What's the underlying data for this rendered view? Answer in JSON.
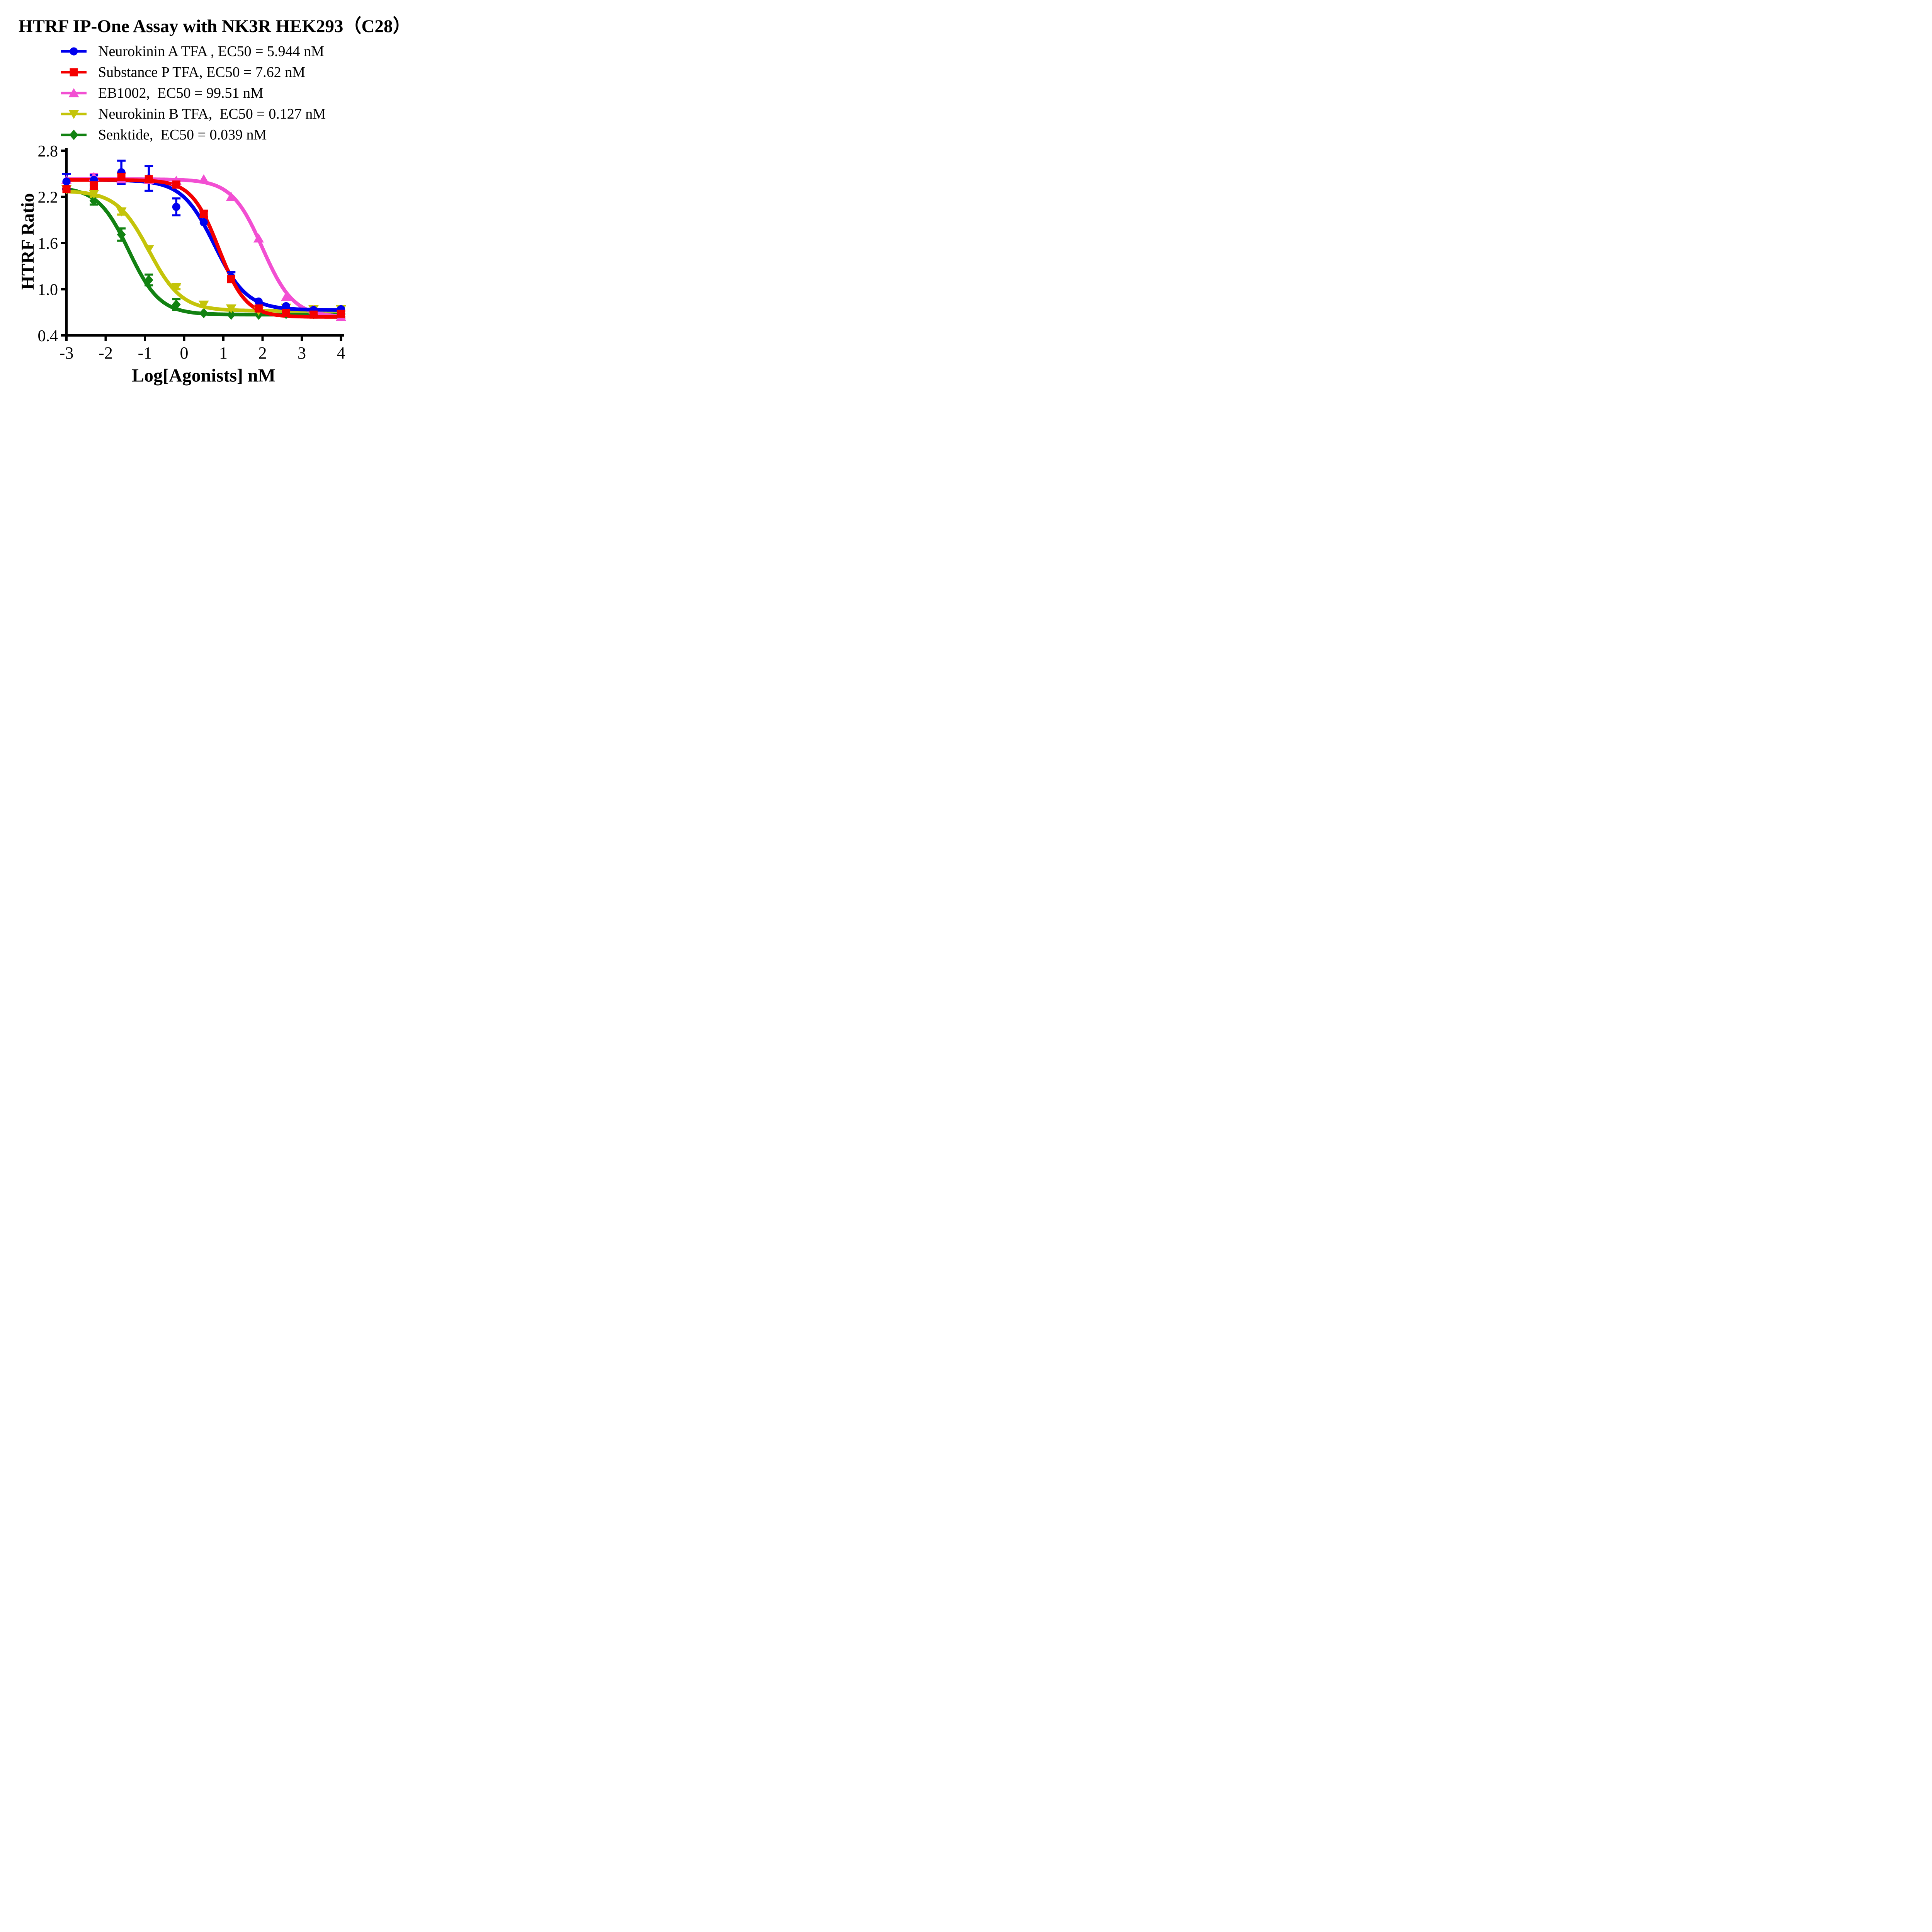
{
  "title": "HTRF IP-One Assay with NK3R HEK293（C28）",
  "chart_data": {
    "type": "line",
    "title": "HTRF IP-One Assay with NK3R HEK293（C28）",
    "xlabel": "Log[Agonists] nM",
    "ylabel": "HTRF Ratio",
    "xlim": [
      -3,
      4
    ],
    "ylim": [
      0.4,
      2.8
    ],
    "grid": false,
    "legend_position": "top-left",
    "xticks": [
      {
        "v": -3,
        "label": "-3"
      },
      {
        "v": -2,
        "label": "-2"
      },
      {
        "v": -1,
        "label": "-1"
      },
      {
        "v": 0,
        "label": "0"
      },
      {
        "v": 1,
        "label": "1"
      },
      {
        "v": 2,
        "label": "2"
      },
      {
        "v": 3,
        "label": "3"
      },
      {
        "v": 4,
        "label": "4"
      }
    ],
    "yticks": [
      {
        "v": 0.4,
        "label": "0.4"
      },
      {
        "v": 1.0,
        "label": "1.0"
      },
      {
        "v": 1.6,
        "label": "1.6"
      },
      {
        "v": 2.2,
        "label": "2.2"
      },
      {
        "v": 2.8,
        "label": "2.8"
      }
    ],
    "x": [
      -3,
      -2.3,
      -1.6,
      -0.9,
      -0.2,
      0.5,
      1.2,
      1.9,
      2.6,
      3.3,
      4
    ],
    "series": [
      {
        "name": "Neurokinin A TFA",
        "legend_label": "Neurokinin A TFA , EC50 = 5.944 nM",
        "ec50_nM": 5.944,
        "color": "#0000EE",
        "marker": "circle",
        "y": [
          2.4,
          2.42,
          2.52,
          2.44,
          2.07,
          1.87,
          1.16,
          0.84,
          0.78,
          0.73,
          0.74
        ],
        "sem": [
          0.1,
          0.06,
          0.15,
          0.16,
          0.11,
          0,
          0.06,
          0,
          0,
          0,
          0
        ],
        "fit": {
          "top": 2.42,
          "bottom": 0.73,
          "logEC50": 0.774,
          "hill": 1.05
        }
      },
      {
        "name": "Substance P TFA",
        "legend_label": "Substance P TFA, EC50 = 7.62 nM",
        "ec50_nM": 7.62,
        "color": "#F40000",
        "marker": "square",
        "y": [
          2.3,
          2.35,
          2.46,
          2.43,
          2.36,
          1.98,
          1.13,
          0.75,
          0.69,
          0.67,
          0.68
        ],
        "sem": [
          0,
          0.05,
          0.05,
          0,
          0,
          0.04,
          0,
          0,
          0,
          0,
          0.04
        ],
        "fit": {
          "top": 2.42,
          "bottom": 0.64,
          "logEC50": 0.882,
          "hill": 1.25
        }
      },
      {
        "name": "EB1002",
        "legend_label": "EB1002,  EC50 = 99.51 nM",
        "ec50_nM": 99.51,
        "color": "#F24FD2",
        "marker": "triangle-up",
        "y": [
          2.42,
          2.46,
          2.43,
          2.42,
          2.41,
          2.43,
          2.2,
          1.66,
          0.9,
          0.73,
          0.64
        ],
        "sem": [
          0,
          0.04,
          0,
          0,
          0,
          0,
          0,
          0,
          0,
          0,
          0
        ],
        "fit": {
          "top": 2.43,
          "bottom": 0.64,
          "logEC50": 1.998,
          "hill": 1.1
        }
      },
      {
        "name": "Neurokinin B TFA",
        "legend_label": "Neurokinin B TFA,  EC50 = 0.127 nM",
        "ec50_nM": 0.127,
        "color": "#C4C40A",
        "marker": "triangle-down",
        "y": [
          2.3,
          2.24,
          2.01,
          1.52,
          1.03,
          0.8,
          0.75,
          0.72,
          0.76,
          0.74,
          0.74
        ],
        "sem": [
          0,
          0.04,
          0.04,
          0,
          0.03,
          0,
          0,
          0,
          0,
          0,
          0
        ],
        "fit": {
          "top": 2.28,
          "bottom": 0.72,
          "logEC50": -0.896,
          "hill": 1.05
        }
      },
      {
        "name": "Senktide",
        "legend_label": "Senktide,  EC50 = 0.039 nM",
        "ec50_nM": 0.039,
        "color": "#128212",
        "marker": "diamond",
        "y": [
          2.33,
          2.15,
          1.71,
          1.12,
          0.8,
          0.69,
          0.67,
          0.67,
          0.68,
          0.68,
          0.65
        ],
        "sem": [
          0,
          0.05,
          0.08,
          0.07,
          0.07,
          0,
          0,
          0,
          0,
          0.02,
          0.03
        ],
        "fit": {
          "top": 2.33,
          "bottom": 0.67,
          "logEC50": -1.409,
          "hill": 1.1
        }
      }
    ]
  }
}
